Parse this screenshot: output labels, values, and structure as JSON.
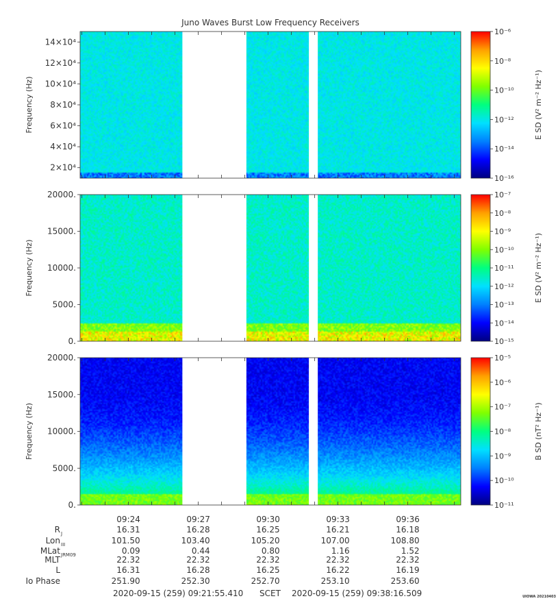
{
  "title": "Juno Waves Burst Low Frequency Receivers",
  "stamp": "UIOWA 20210403",
  "colormap": [
    "#000080",
    "#0000ff",
    "#0080ff",
    "#00e0ff",
    "#00ff80",
    "#80ff00",
    "#ffff00",
    "#ffa000",
    "#ff0000"
  ],
  "chart_data": [
    {
      "type": "heatmap",
      "ylabel": "Frequency (Hz)",
      "ylim": [
        10000,
        150000
      ],
      "yticks": [
        {
          "value": 20000,
          "label": "2×10⁴"
        },
        {
          "value": 40000,
          "label": "4×10⁴"
        },
        {
          "value": 60000,
          "label": "6×10⁴"
        },
        {
          "value": 80000,
          "label": "8×10⁴"
        },
        {
          "value": 100000,
          "label": "10×10⁴"
        },
        {
          "value": 120000,
          "label": "12×10⁴"
        },
        {
          "value": 140000,
          "label": "14×10⁴"
        }
      ],
      "colorbar": {
        "label": "E SD (V² m⁻² Hz⁻¹)",
        "ticks": [
          "10⁻⁶",
          "10⁻⁸",
          "10⁻¹⁰",
          "10⁻¹²",
          "10⁻¹⁴",
          "10⁻¹⁶"
        ]
      },
      "data_gaps": [
        [
          "09:26:19",
          "09:29:04"
        ],
        [
          "09:31:45",
          "09:32:08"
        ]
      ]
    },
    {
      "type": "heatmap",
      "ylabel": "Frequency (Hz)",
      "ylim": [
        0,
        20000
      ],
      "yticks": [
        {
          "value": 0,
          "label": "0."
        },
        {
          "value": 5000,
          "label": "5000."
        },
        {
          "value": 10000,
          "label": "10000."
        },
        {
          "value": 15000,
          "label": "15000."
        },
        {
          "value": 20000,
          "label": "20000."
        }
      ],
      "colorbar": {
        "label": "E SD (V² m⁻² Hz⁻¹)",
        "ticks": [
          "10⁻⁷",
          "10⁻⁸",
          "10⁻⁹",
          "10⁻¹⁰",
          "10⁻¹¹",
          "10⁻¹²",
          "10⁻¹³",
          "10⁻¹⁴",
          "10⁻¹⁵"
        ]
      },
      "data_gaps": [
        [
          "09:26:19",
          "09:29:04"
        ],
        [
          "09:31:45",
          "09:32:08"
        ]
      ]
    },
    {
      "type": "heatmap",
      "ylabel": "Frequency (Hz)",
      "ylim": [
        0,
        20000
      ],
      "yticks": [
        {
          "value": 0,
          "label": "0."
        },
        {
          "value": 5000,
          "label": "5000."
        },
        {
          "value": 10000,
          "label": "10000."
        },
        {
          "value": 15000,
          "label": "15000."
        },
        {
          "value": 20000,
          "label": "20000."
        }
      ],
      "colorbar": {
        "label": "B SD (nT² Hz⁻¹)",
        "ticks": [
          "10⁻⁵",
          "10⁻⁶",
          "10⁻⁷",
          "10⁻⁸",
          "10⁻⁹",
          "10⁻¹⁰",
          "10⁻¹¹"
        ]
      },
      "data_gaps": [
        [
          "09:26:19",
          "09:29:04"
        ],
        [
          "09:31:45",
          "09:32:08"
        ]
      ]
    }
  ],
  "time_axis": {
    "start": "09:21:55.410",
    "end": "09:38:16.509",
    "ticks": [
      "09:24",
      "09:27",
      "09:30",
      "09:33",
      "09:36"
    ]
  },
  "ephemeris": {
    "labels": [
      "R",
      "Lon",
      "MLat",
      "MLT",
      "L",
      "Io Phase"
    ],
    "label_subscripts": [
      "J",
      "III",
      "JRM09",
      "",
      "",
      ""
    ],
    "columns": [
      [
        "16.31",
        "101.50",
        "0.09",
        "22.32",
        "16.31",
        "251.90"
      ],
      [
        "16.28",
        "103.40",
        "0.44",
        "22.32",
        "16.28",
        "252.30"
      ],
      [
        "16.25",
        "105.20",
        "0.80",
        "22.32",
        "16.25",
        "252.70"
      ],
      [
        "16.21",
        "107.00",
        "1.16",
        "22.32",
        "16.22",
        "253.10"
      ],
      [
        "16.18",
        "108.80",
        "1.52",
        "22.32",
        "16.19",
        "253.60"
      ]
    ]
  },
  "footer": {
    "start": "2020-09-15 (259) 09:21:55.410",
    "scet": "SCET",
    "end": "2020-09-15 (259) 09:38:16.509"
  }
}
